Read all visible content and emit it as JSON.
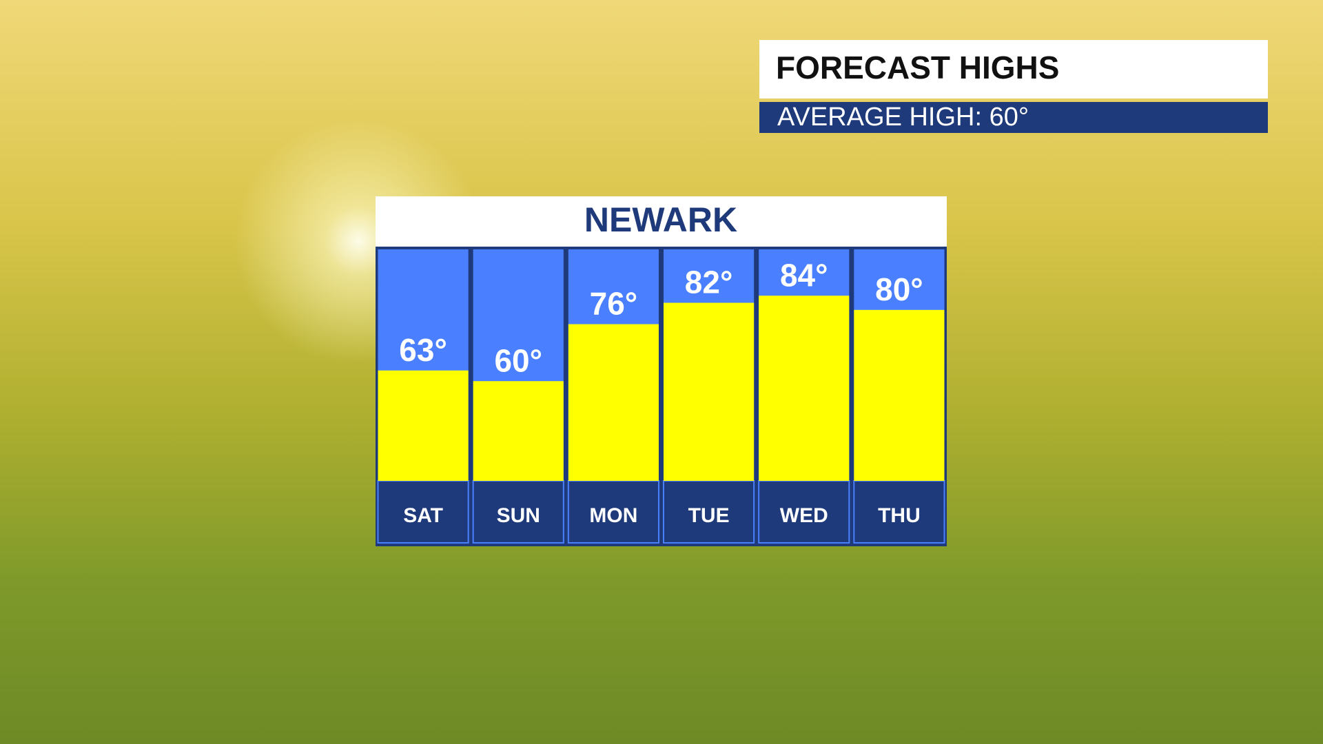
{
  "chart_data": {
    "type": "bar",
    "title": "FORECAST HIGHS",
    "subtitle": "AVERAGE HIGH:  60°",
    "location": "NEWARK",
    "categories": [
      "SAT",
      "SUN",
      "MON",
      "TUE",
      "WED",
      "THU"
    ],
    "values": [
      63,
      60,
      76,
      82,
      84,
      80
    ],
    "value_labels": [
      "63°",
      "60°",
      "76°",
      "82°",
      "84°",
      "80°"
    ],
    "color": "#ffff00",
    "ylim": [
      32,
      97
    ]
  }
}
